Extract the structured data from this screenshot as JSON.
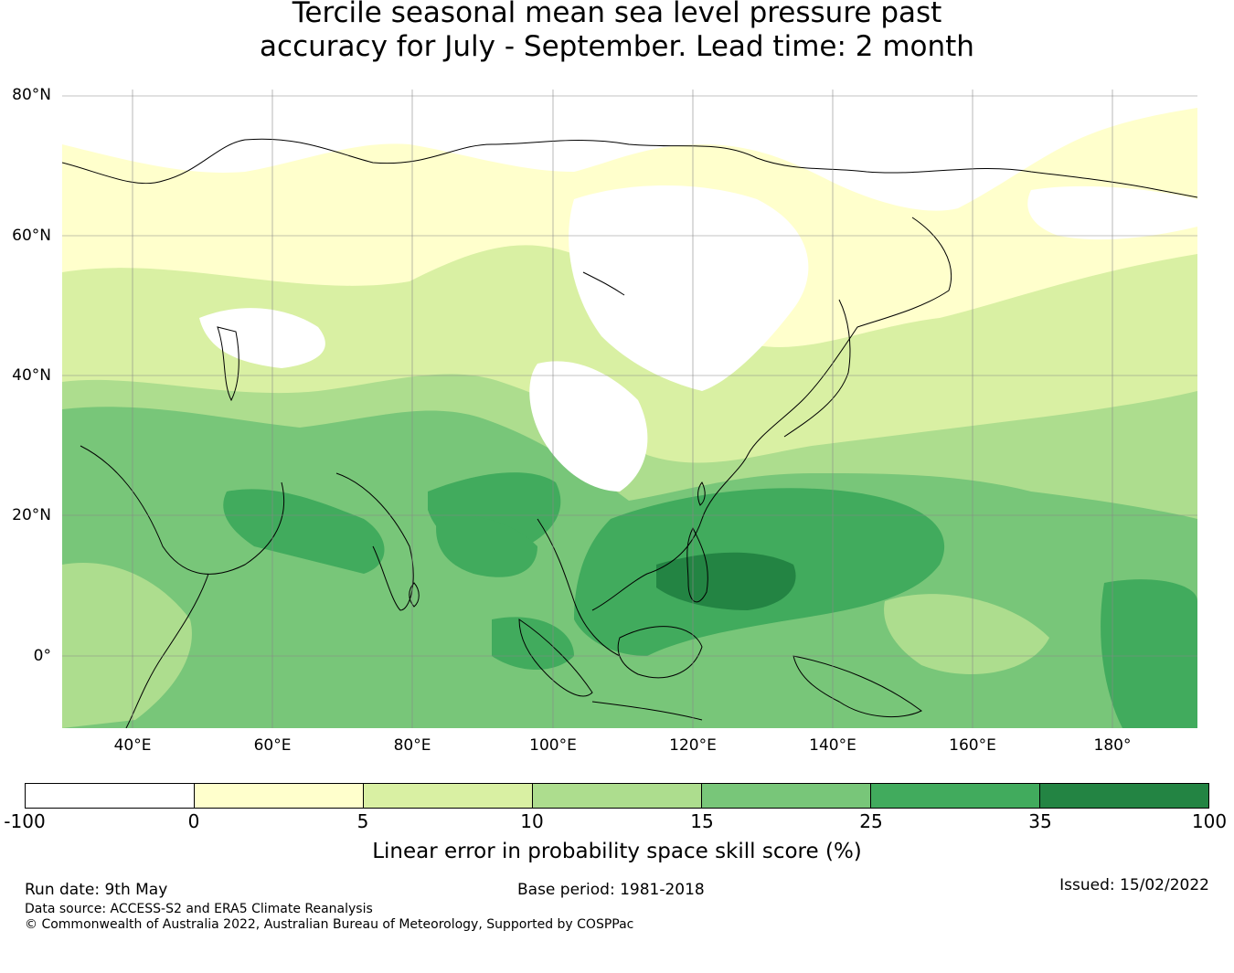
{
  "title": {
    "line1": "Tercile seasonal mean sea level pressure past",
    "line2": "accuracy for July - September. Lead time: 2 month"
  },
  "map": {
    "lon_range": [
      30,
      192
    ],
    "lat_range": [
      -10,
      81
    ],
    "lat_ticks": [
      {
        "value": 80,
        "label": "80°N"
      },
      {
        "value": 60,
        "label": "60°N"
      },
      {
        "value": 40,
        "label": "40°N"
      },
      {
        "value": 20,
        "label": "20°N"
      },
      {
        "value": 0,
        "label": "0°"
      }
    ],
    "lon_ticks": [
      {
        "value": 40,
        "label": "40°E"
      },
      {
        "value": 60,
        "label": "60°E"
      },
      {
        "value": 80,
        "label": "80°E"
      },
      {
        "value": 100,
        "label": "100°E"
      },
      {
        "value": 120,
        "label": "120°E"
      },
      {
        "value": 140,
        "label": "140°E"
      },
      {
        "value": 160,
        "label": "160°E"
      },
      {
        "value": 180,
        "label": "180°"
      }
    ]
  },
  "colorbar": {
    "ticks": [
      "-100",
      "0",
      "5",
      "10",
      "15",
      "25",
      "35",
      "100"
    ],
    "colors": [
      "#ffffff",
      "#ffffcc",
      "#d9f0a3",
      "#addd8e",
      "#78c679",
      "#41ab5d",
      "#238443"
    ],
    "label": "Linear error in probability space skill score (%)"
  },
  "footer": {
    "run_date": "Run date: 9th May",
    "base_period": "Base period: 1981-2018",
    "issued": "Issued: 15/02/2022",
    "data_source": "Data source: ACCESS-S2 and ERA5 Climate Reanalysis",
    "copyright": "© Commonwealth of Australia 2022, Australian Bureau of Meteorology, Supported by COSPPac"
  }
}
